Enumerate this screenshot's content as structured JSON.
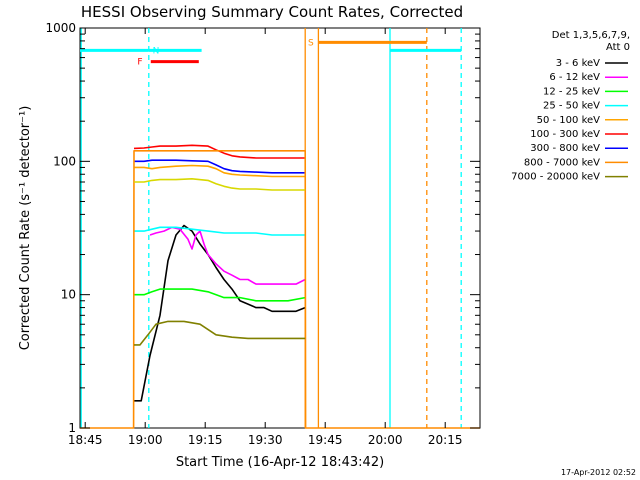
{
  "chart_data": {
    "type": "line",
    "title": "HESSI Observing Summary Count Rates, Corrected",
    "xlabel": "Start Time (16-Apr-12 18:43:42)",
    "ylabel": "Corrected Count Rate (s⁻¹ detector⁻¹)",
    "x_unit": "minutes since 18:43:42",
    "xlim": [
      0,
      100
    ],
    "ylim": [
      1,
      1000
    ],
    "yscale": "log",
    "xticks": [
      {
        "x": 1.3,
        "label": "18:45"
      },
      {
        "x": 16.3,
        "label": "19:00"
      },
      {
        "x": 31.3,
        "label": "19:15"
      },
      {
        "x": 46.3,
        "label": "19:30"
      },
      {
        "x": 61.3,
        "label": "19:45"
      },
      {
        "x": 76.3,
        "label": "20:00"
      },
      {
        "x": 91.3,
        "label": "20:15"
      }
    ],
    "yticks": [
      {
        "y": 1,
        "label": "1"
      },
      {
        "y": 10,
        "label": "10"
      },
      {
        "y": 100,
        "label": "100"
      },
      {
        "y": 1000,
        "label": "1000"
      }
    ],
    "legend_header": [
      "Det 1,3,5,6,7,9,",
      "Att 0"
    ],
    "legend_position": "right",
    "series": [
      {
        "name": "3 - 6 keV",
        "color": "#000000",
        "x": [
          13.5,
          15.3,
          17.5,
          20,
          22,
          24,
          26,
          28,
          30,
          32,
          34,
          36,
          38,
          40,
          42,
          44,
          46,
          48,
          50,
          52,
          54,
          56.3
        ],
        "y": [
          1.6,
          1.6,
          3.5,
          7,
          18,
          28,
          33,
          30,
          24,
          20,
          16,
          13,
          11,
          9,
          8.5,
          8,
          8,
          7.5,
          7.5,
          7.5,
          7.5,
          8
        ]
      },
      {
        "name": "6 - 12 keV",
        "color": "#ff00ff",
        "x": [
          17.5,
          19,
          21,
          23,
          25,
          27,
          28,
          29,
          30,
          31,
          32,
          34,
          36,
          38,
          40,
          42,
          44,
          46,
          48,
          50,
          52,
          54,
          56.3
        ],
        "y": [
          28,
          29,
          30,
          32,
          31,
          26,
          22,
          28,
          30,
          24,
          20,
          17,
          15,
          14,
          13,
          13,
          12,
          12,
          12,
          12,
          12,
          12,
          13
        ]
      },
      {
        "name": "12 - 25 keV",
        "color": "#00ff00",
        "x": [
          13.5,
          16,
          18,
          20,
          24,
          28,
          32,
          36,
          40,
          44,
          48,
          52,
          56.3
        ],
        "y": [
          10,
          10,
          10.5,
          11,
          11,
          11,
          10.5,
          9.5,
          9.5,
          9,
          9,
          9,
          9.5
        ]
      },
      {
        "name": "25 - 50 keV",
        "color": "#00ffff",
        "x": [
          13.5,
          16,
          18,
          20,
          24,
          28,
          32,
          36,
          40,
          44,
          48,
          52,
          56.3
        ],
        "y": [
          30,
          30,
          31,
          32,
          32,
          31,
          30,
          29,
          29,
          29,
          28,
          28,
          28
        ]
      },
      {
        "name": "50 - 100 keV",
        "color": "#ffa500",
        "x": [
          13.5,
          16,
          18,
          20,
          24,
          28,
          32,
          34,
          36,
          38,
          40,
          44,
          48,
          52,
          56.3
        ],
        "y": [
          90,
          90,
          88,
          90,
          92,
          93,
          92,
          88,
          82,
          80,
          79,
          78,
          77,
          77,
          77
        ]
      },
      {
        "name": "100 - 300 keV",
        "color": "#ff0000",
        "x": [
          13.5,
          16,
          18,
          20,
          24,
          28,
          32,
          34,
          36,
          38,
          40,
          44,
          48,
          52,
          56.3
        ],
        "y": [
          125,
          126,
          128,
          130,
          130,
          132,
          130,
          122,
          115,
          110,
          108,
          106,
          106,
          106,
          106
        ]
      },
      {
        "name": "300 - 800 keV",
        "color": "#0000ff",
        "x": [
          13.5,
          16,
          18,
          20,
          24,
          28,
          32,
          34,
          36,
          38,
          40,
          44,
          48,
          52,
          56.3
        ],
        "y": [
          100,
          100,
          102,
          102,
          102,
          101,
          100,
          94,
          88,
          85,
          84,
          83,
          82,
          82,
          82
        ]
      },
      {
        "name": "800 - 7000 keV",
        "color": "#ff8c00",
        "x": [
          0,
          13.4,
          13.5,
          56.3,
          56.4,
          100
        ],
        "y": [
          1,
          1,
          120,
          120,
          1,
          1
        ]
      },
      {
        "name": "7000 - 20000 keV",
        "color": "#808000",
        "x": [
          13.5,
          15,
          17,
          19,
          22,
          26,
          30,
          34,
          38,
          42,
          46,
          50,
          54,
          56.3
        ],
        "y": [
          4.2,
          4.2,
          5,
          6,
          6.3,
          6.3,
          6,
          5,
          4.8,
          4.7,
          4.7,
          4.7,
          4.7,
          4.7
        ]
      },
      {
        "name": "",
        "color": "#d8d800",
        "x": [
          13.5,
          16,
          18,
          20,
          24,
          28,
          32,
          34,
          36,
          38,
          40,
          44,
          48,
          52,
          56.3
        ],
        "y": [
          70,
          70,
          72,
          73,
          73,
          74,
          72,
          68,
          65,
          63,
          62,
          62,
          61,
          61,
          61
        ]
      }
    ],
    "vlines": [
      {
        "x": 0.3,
        "color": "#00ffff",
        "style": "solid"
      },
      {
        "x": 17.2,
        "color": "#00ffff",
        "style": "dashed"
      },
      {
        "x": 56.3,
        "color": "#ff8c00",
        "style": "solid"
      },
      {
        "x": 59.6,
        "color": "#ff8c00",
        "style": "solid"
      },
      {
        "x": 77.5,
        "color": "#00ffff",
        "style": "solid"
      },
      {
        "x": 86.7,
        "color": "#ff8c00",
        "style": "dashed"
      },
      {
        "x": 95.3,
        "color": "#00ffff",
        "style": "dashed"
      }
    ],
    "bars": [
      {
        "label": "",
        "color": "#00ffff",
        "x": [
          0,
          17.2
        ],
        "y": 680
      },
      {
        "label": "N",
        "color": "#00ffff",
        "x": [
          17.2,
          30.4
        ],
        "y": 680,
        "label_x": 19,
        "label_y": 680
      },
      {
        "label": "F",
        "color": "#ff0000",
        "x": [
          17.7,
          29.7
        ],
        "y": 560,
        "label_x": 15,
        "label_y": 560
      },
      {
        "label": "S",
        "color": "#ff8c00",
        "x": [
          59.6,
          86.7
        ],
        "y": 780,
        "label_x": 57.7,
        "label_y": 780
      },
      {
        "label": "",
        "color": "#00ffff",
        "x": [
          77.5,
          95.3
        ],
        "y": 680
      }
    ],
    "timestamp": "17-Apr-2012 02:52"
  }
}
